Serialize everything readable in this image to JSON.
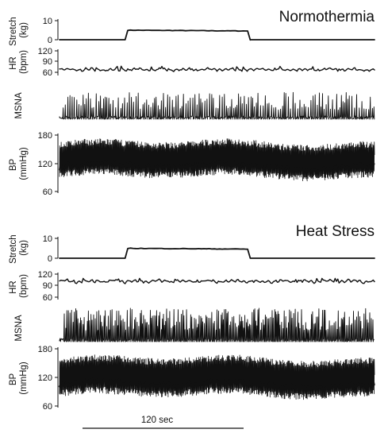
{
  "chart_data": [
    {
      "type": "line",
      "title": "Normothermia",
      "panels": [
        {
          "ylabel": [
            "Stretch",
            "(kg)"
          ],
          "ticks": [
            "10",
            "0"
          ],
          "ylim": [
            0,
            12
          ]
        },
        {
          "ylabel": [
            "HR",
            "(bpm)"
          ],
          "ticks": [
            "120",
            "90",
            "60"
          ],
          "ylim": [
            55,
            120
          ]
        },
        {
          "ylabel": [
            "MSNA"
          ],
          "ticks": []
        },
        {
          "ylabel": [
            "BP",
            "(mmHg)"
          ],
          "ticks": [
            "180",
            "120",
            "60"
          ],
          "ylim": [
            55,
            180
          ]
        }
      ],
      "series": [
        {
          "name": "Stretch",
          "x": [
            0,
            75,
            78,
            215,
            218,
            360
          ],
          "y": [
            0,
            0,
            6,
            5.5,
            0,
            0
          ]
        },
        {
          "name": "HR",
          "mean": 63,
          "range": [
            55,
            75
          ]
        },
        {
          "name": "MSNA",
          "bursts_per_min": 30
        },
        {
          "name": "BP",
          "systolic": [
            150,
            165
          ],
          "diastolic": [
            85,
            100
          ]
        }
      ]
    },
    {
      "type": "line",
      "title": "Heat Stress",
      "panels": [
        {
          "ylabel": [
            "Stretch",
            "(kg)"
          ],
          "ticks": [
            "10",
            "0"
          ],
          "ylim": [
            0,
            12
          ]
        },
        {
          "ylabel": [
            "HR",
            "(bpm)"
          ],
          "ticks": [
            "120",
            "90",
            "60"
          ],
          "ylim": [
            55,
            120
          ]
        },
        {
          "ylabel": [
            "MSNA"
          ],
          "ticks": []
        },
        {
          "ylabel": [
            "BP",
            "(mmHg)"
          ],
          "ticks": [
            "180",
            "120",
            "60"
          ],
          "ylim": [
            55,
            180
          ]
        }
      ],
      "series": [
        {
          "name": "Stretch",
          "x": [
            0,
            75,
            78,
            215,
            218,
            360
          ],
          "y": [
            0,
            0,
            6,
            5.5,
            0,
            0
          ]
        },
        {
          "name": "HR",
          "mean": 100,
          "range": [
            88,
            108
          ]
        },
        {
          "name": "MSNA",
          "bursts_per_min": 50
        },
        {
          "name": "BP",
          "systolic": [
            145,
            160
          ],
          "diastolic": [
            75,
            90
          ]
        }
      ]
    }
  ],
  "scale_bar": {
    "label": "120 sec"
  },
  "colors": {
    "trace": "#111111",
    "background": "#ffffff"
  }
}
